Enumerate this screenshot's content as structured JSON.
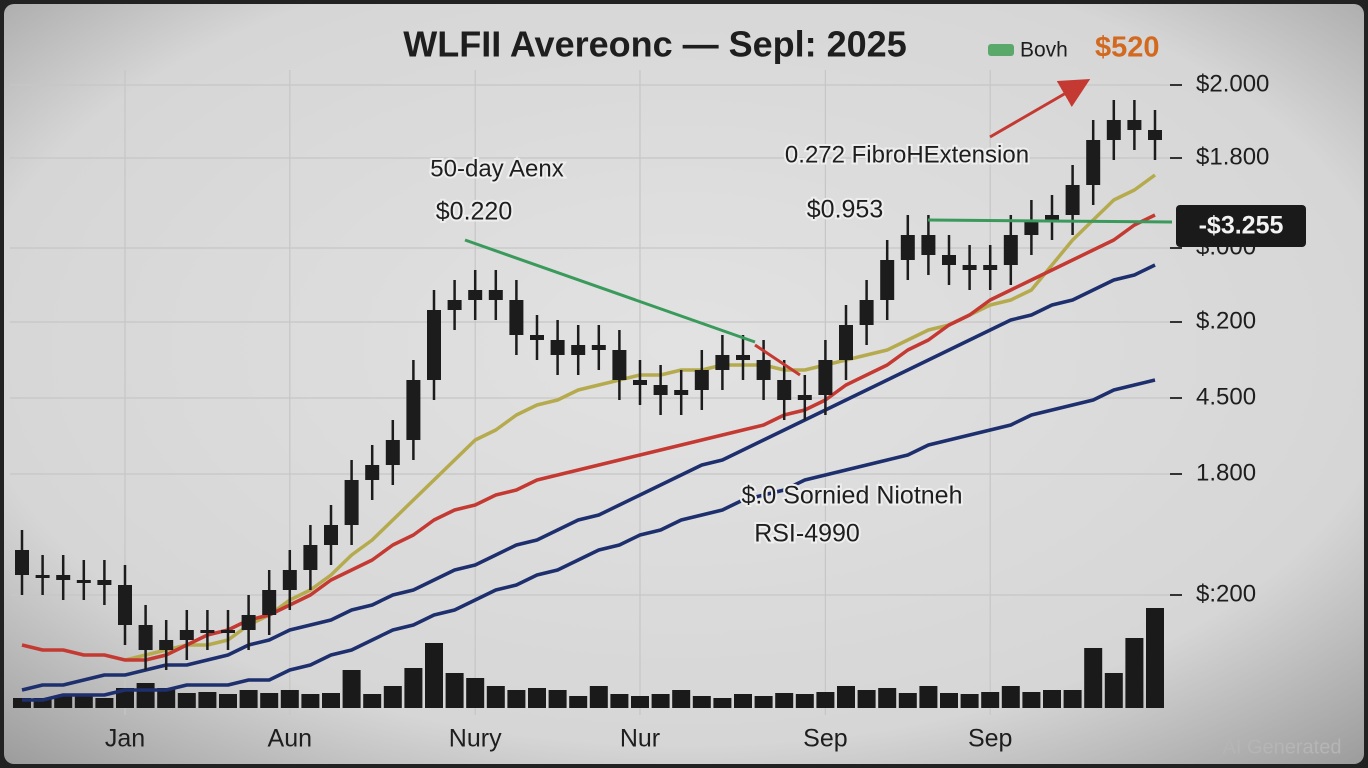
{
  "chart_data": {
    "type": "candlestick",
    "title": "WLFII Avereonc — Sepl: 2025",
    "legend": {
      "label": "Bovh",
      "value_label": "$520",
      "color": "#5aa86a"
    },
    "annotations": [
      "50-day Aenx",
      "$0.220",
      "0.272 FibroHExtension",
      "$0.953",
      "$.0 Sornied Niotneh",
      "RSI-4990"
    ],
    "price_callout": "-$3.255",
    "watermark": "AI Generated",
    "y_axis_labels": [
      "$2.000",
      "$1.800",
      "$.000",
      "$.200",
      "4.500",
      "1.800",
      "$:200"
    ],
    "categories": [
      null,
      null,
      null,
      null,
      null,
      "Jan",
      null,
      null,
      null,
      null,
      null,
      null,
      null,
      "Aun",
      null,
      null,
      null,
      null,
      null,
      null,
      null,
      null,
      "Nury",
      null,
      null,
      null,
      null,
      null,
      null,
      null,
      "Nur",
      null,
      null,
      null,
      null,
      null,
      null,
      null,
      null,
      "Sep",
      null,
      null,
      null,
      null,
      null,
      null,
      null,
      "Sep",
      null,
      null,
      null,
      null,
      null,
      null,
      null,
      null
    ],
    "ylim": [
      0,
      128
    ],
    "grid": true,
    "color": "#1c1c1c",
    "open": [
      30,
      25,
      25,
      24,
      24,
      23,
      15,
      10,
      12,
      14,
      14,
      14,
      17,
      22,
      26,
      31,
      35,
      44,
      47,
      52,
      64,
      78,
      80,
      82,
      80,
      73,
      72,
      69,
      71,
      70,
      64,
      63,
      61,
      62,
      66,
      69,
      68,
      64,
      60,
      61,
      68,
      75,
      80,
      88,
      93,
      89,
      87,
      86,
      87,
      93,
      96,
      97,
      103,
      112,
      116,
      114
    ],
    "close": [
      25,
      25,
      24,
      24,
      23,
      15,
      10,
      12,
      14,
      14,
      14,
      17,
      22,
      26,
      31,
      35,
      44,
      47,
      52,
      64,
      78,
      80,
      82,
      80,
      73,
      72,
      69,
      71,
      70,
      64,
      63,
      61,
      62,
      66,
      69,
      68,
      64,
      60,
      61,
      68,
      75,
      80,
      88,
      93,
      89,
      87,
      86,
      87,
      93,
      96,
      97,
      103,
      112,
      116,
      114,
      112
    ],
    "high": [
      34,
      29,
      29,
      28,
      28,
      27,
      19,
      16,
      18,
      18,
      18,
      21,
      26,
      30,
      35,
      39,
      48,
      51,
      56,
      68,
      82,
      84,
      86,
      86,
      84,
      77,
      76,
      75,
      75,
      74,
      68,
      67,
      66,
      70,
      73,
      73,
      72,
      68,
      65,
      72,
      79,
      84,
      92,
      97,
      97,
      93,
      91,
      91,
      97,
      100,
      101,
      107,
      116,
      120,
      120,
      118
    ],
    "low": [
      21,
      21,
      20,
      20,
      19,
      11,
      6,
      6,
      8,
      10,
      10,
      10,
      13,
      18,
      22,
      27,
      31,
      40,
      43,
      48,
      60,
      74,
      76,
      76,
      69,
      68,
      65,
      65,
      66,
      60,
      59,
      57,
      57,
      58,
      62,
      64,
      60,
      56,
      56,
      57,
      64,
      71,
      76,
      84,
      85,
      83,
      82,
      82,
      83,
      89,
      92,
      93,
      99,
      108,
      110,
      108
    ],
    "lines": [
      {
        "color": "#b5ab4e",
        "values": [
          null,
          null,
          null,
          null,
          null,
          8,
          9,
          10,
          11,
          11,
          12,
          15,
          17,
          20,
          22,
          25,
          29,
          32,
          36,
          40,
          44,
          48,
          52,
          54,
          57,
          59,
          60,
          62,
          63,
          64,
          65,
          65,
          66,
          66,
          67,
          67,
          67,
          66,
          66,
          67,
          68,
          69,
          70,
          72,
          74,
          75,
          77,
          79,
          80,
          82,
          87,
          92,
          96,
          100,
          102,
          105
        ]
      },
      {
        "color": "#c43a32",
        "values": [
          11,
          10,
          10,
          9,
          9,
          8,
          8,
          9,
          11,
          13,
          14,
          16,
          17,
          19,
          21,
          24,
          26,
          28,
          31,
          33,
          36,
          38,
          39,
          41,
          42,
          44,
          45,
          46,
          47,
          48,
          49,
          50,
          51,
          52,
          53,
          54,
          55,
          57,
          58,
          60,
          63,
          65,
          67,
          70,
          72,
          75,
          77,
          80,
          82,
          84,
          86,
          88,
          90,
          92,
          95,
          97
        ]
      },
      {
        "color": "#1e2f6e",
        "values": [
          2,
          3,
          3,
          4,
          5,
          5,
          6,
          7,
          7,
          8,
          9,
          11,
          12,
          14,
          15,
          16,
          18,
          19,
          21,
          22,
          24,
          26,
          27,
          29,
          31,
          32,
          34,
          36,
          37,
          39,
          41,
          43,
          45,
          47,
          48,
          50,
          52,
          54,
          56,
          58,
          60,
          62,
          64,
          66,
          68,
          70,
          72,
          74,
          76,
          77,
          79,
          80,
          82,
          84,
          85,
          87
        ]
      },
      {
        "color": "#1e2f6e",
        "values": [
          0,
          0,
          1,
          1,
          1,
          2,
          2,
          2,
          3,
          3,
          3,
          4,
          4,
          6,
          7,
          9,
          10,
          12,
          14,
          15,
          17,
          18,
          20,
          22,
          23,
          25,
          26,
          28,
          30,
          31,
          33,
          34,
          36,
          37,
          38,
          40,
          41,
          42,
          44,
          45,
          46,
          47,
          48,
          49,
          51,
          52,
          53,
          54,
          55,
          57,
          58,
          59,
          60,
          62,
          63,
          64
        ]
      }
    ],
    "volume": {
      "color": "#1a1a1a",
      "ylim": [
        0,
        100
      ],
      "values": [
        10,
        10,
        12,
        12,
        10,
        20,
        25,
        20,
        15,
        16,
        14,
        18,
        15,
        18,
        14,
        15,
        38,
        14,
        22,
        40,
        65,
        35,
        30,
        22,
        18,
        20,
        18,
        12,
        22,
        14,
        12,
        14,
        18,
        12,
        10,
        14,
        12,
        15,
        14,
        16,
        22,
        18,
        20,
        15,
        22,
        15,
        14,
        16,
        22,
        16,
        18,
        18,
        60,
        35,
        70,
        100
      ]
    }
  }
}
